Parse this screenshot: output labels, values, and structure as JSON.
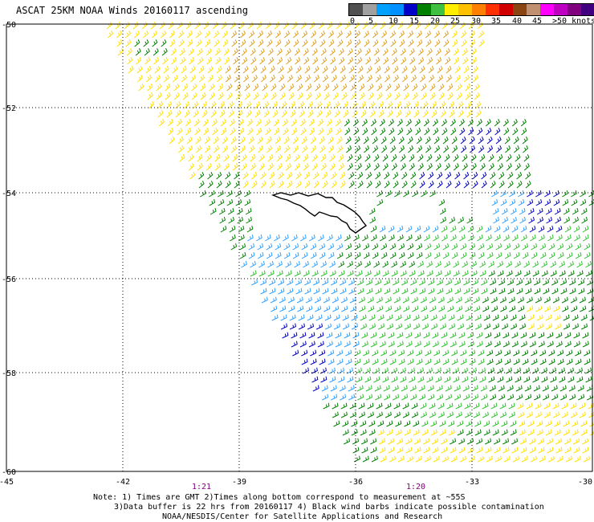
{
  "title": "ASCAT 25KM NOAA Winds 20160117 ascending",
  "legend": {
    "colors": [
      "#505050",
      "#a0a0a0",
      "#00a0ff",
      "#0090ff",
      "#0000c8",
      "#008000",
      "#40c040",
      "#ffee00",
      "#ffc000",
      "#ff8000",
      "#ff3000",
      "#d00000",
      "#8b4513",
      "#c09070",
      "#ff00ff",
      "#c000c0",
      "#800080",
      "#400080"
    ],
    "labels": [
      "0",
      "5",
      "10",
      "15",
      "20",
      "25",
      "30",
      "35",
      "40",
      "45",
      ">50 knots"
    ]
  },
  "axes": {
    "lon_ticks": [
      "-45",
      "-42",
      "-39",
      "-36",
      "-33",
      "-30"
    ],
    "lat_ticks": [
      "-50",
      "-52",
      "-54",
      "-56",
      "-58",
      "-60"
    ]
  },
  "times": [
    "1:21",
    "1:20"
  ],
  "notes": [
    "Note: 1) Times are GMT 2)Times along bottom correspond to measurement at ~55S",
    "3)Data buffer is 22 hrs from 20160117 4) Black wind barbs indicate possible contamination",
    "NOAA/NESDIS/Center for Satellite Applications and Research"
  ],
  "wind_colors": {
    "light_blue": "#30a0ff",
    "blue": "#0000c0",
    "dark_green": "#008000",
    "green": "#30c030",
    "yellow": "#ffe000",
    "orange": "#e0a020",
    "brown": "#c06010",
    "land": "#000000"
  }
}
